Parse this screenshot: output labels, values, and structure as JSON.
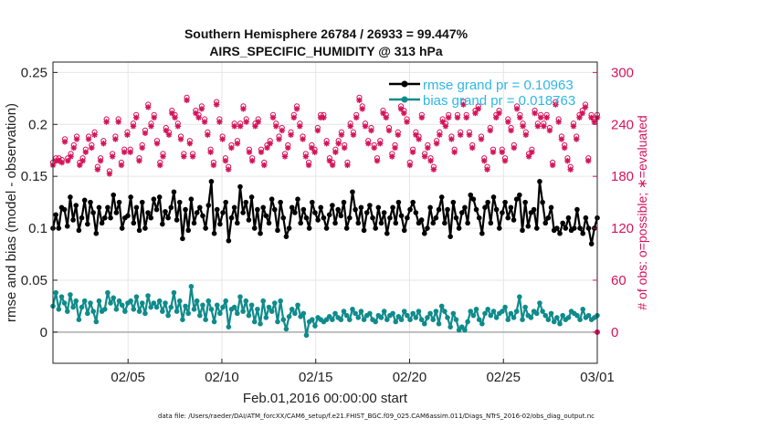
{
  "chart_data": {
    "type": "line",
    "title": "Southern Hemisphere 26784 / 26933 = 99.447%",
    "subtitle": "AIRS_SPECIFIC_HUMIDITY @ 313 hPa",
    "xlabel": "Feb.01,2016 00:00:00 start",
    "ylabel": "rmse and bias (model - observation)",
    "ylabel_right": "# of obs: o=possible; ∗=evaluated",
    "footnote": "data file: /Users/raeder/DAI/ATM_forcXX/CAM6_setup/f.e21.FHIST_BGC.f09_025.CAM6assim.011/Diags_NTrS_2016-02/obs_diag_output.nc",
    "x_tick_labels": [
      "02/05",
      "02/10",
      "02/15",
      "02/20",
      "02/25",
      "03/01"
    ],
    "x_tick_days": [
      5,
      10,
      15,
      20,
      25,
      30
    ],
    "xlim": [
      1,
      30
    ],
    "ylim": [
      -0.03,
      0.26
    ],
    "y_ticks": [
      0,
      0.05,
      0.1,
      0.15,
      0.2,
      0.25
    ],
    "y_tick_labels": [
      "0",
      "0.05",
      "0.1",
      "0.15",
      "0.2",
      "0.25"
    ],
    "ylim_right": [
      -36,
      312
    ],
    "y_ticks_right": [
      0,
      60,
      120,
      180,
      240,
      300
    ],
    "y_tick_labels_right": [
      "0",
      "60",
      "120",
      "180",
      "240",
      "300"
    ],
    "legend_position": "top-right",
    "colors": {
      "rmse": "#000000",
      "bias": "#108b8b",
      "obs": "#d4145a",
      "legend_text": "#2fb6e8",
      "zero_line": "#aaaaaa"
    },
    "series": [
      {
        "name": "rmse grand pr = 0.10963",
        "axis": "left",
        "values": [
          0.1,
          0.113,
          0.1,
          0.12,
          0.118,
          0.102,
          0.13,
          0.108,
          0.122,
          0.098,
          0.11,
          0.127,
          0.104,
          0.125,
          0.115,
          0.095,
          0.12,
          0.105,
          0.11,
          0.12,
          0.11,
          0.132,
          0.115,
          0.125,
          0.1,
          0.11,
          0.112,
          0.13,
          0.105,
          0.12,
          0.098,
          0.125,
          0.1,
          0.115,
          0.11,
          0.128,
          0.118,
          0.13,
          0.104,
          0.116,
          0.11,
          0.12,
          0.135,
          0.108,
          0.125,
          0.09,
          0.118,
          0.098,
          0.128,
          0.105,
          0.115,
          0.12,
          0.112,
          0.1,
          0.122,
          0.145,
          0.095,
          0.118,
          0.104,
          0.115,
          0.125,
          0.088,
          0.11,
          0.12,
          0.105,
          0.14,
          0.115,
          0.125,
          0.108,
          0.13,
          0.1,
          0.118,
          0.095,
          0.12,
          0.112,
          0.105,
          0.128,
          0.118,
          0.098,
          0.125,
          0.11,
          0.092,
          0.1,
          0.12,
          0.115,
          0.128,
          0.105,
          0.118,
          0.11,
          0.1,
          0.125,
          0.115,
          0.108,
          0.12,
          0.11,
          0.1,
          0.113,
          0.122,
          0.105,
          0.118,
          0.112,
          0.125,
          0.1,
          0.11,
          0.135,
          0.118,
          0.105,
          0.12,
          0.098,
          0.115,
          0.122,
          0.11,
          0.1,
          0.12,
          0.105,
          0.115,
          0.095,
          0.11,
          0.12,
          0.105,
          0.125,
          0.112,
          0.098,
          0.11,
          0.118,
          0.125,
          0.115,
          0.105,
          0.108,
          0.095,
          0.1,
          0.12,
          0.105,
          0.11,
          0.118,
          0.13,
          0.105,
          0.118,
          0.092,
          0.125,
          0.11,
          0.1,
          0.115,
          0.12,
          0.105,
          0.132,
          0.128,
          0.118,
          0.11,
          0.095,
          0.12,
          0.125,
          0.105,
          0.13,
          0.118,
          0.1,
          0.115,
          0.125,
          0.11,
          0.12,
          0.108,
          0.128,
          0.132,
          0.098,
          0.125,
          0.102,
          0.115,
          0.118,
          0.1,
          0.145,
          0.125,
          0.105,
          0.11,
          0.12,
          0.098,
          0.1,
          0.095,
          0.105,
          0.1,
          0.11,
          0.098,
          0.1,
          0.118,
          0.1,
          0.095,
          0.11,
          0.1,
          0.085,
          0.1,
          0.11
        ]
      },
      {
        "name": "bias grand pr = 0.018763",
        "axis": "left",
        "values": [
          0.025,
          0.038,
          0.022,
          0.034,
          0.028,
          0.02,
          0.036,
          0.024,
          0.03,
          0.012,
          0.024,
          0.03,
          0.018,
          0.028,
          0.02,
          0.01,
          0.03,
          0.02,
          0.022,
          0.038,
          0.028,
          0.033,
          0.022,
          0.03,
          0.026,
          0.02,
          0.028,
          0.03,
          0.022,
          0.034,
          0.02,
          0.028,
          0.018,
          0.035,
          0.024,
          0.028,
          0.024,
          0.03,
          0.02,
          0.028,
          0.016,
          0.024,
          0.038,
          0.02,
          0.03,
          0.012,
          0.025,
          0.018,
          0.044,
          0.022,
          0.03,
          0.016,
          0.026,
          0.012,
          0.03,
          0.022,
          0.01,
          0.026,
          0.018,
          0.024,
          0.03,
          0.005,
          0.022,
          0.024,
          0.018,
          0.034,
          0.02,
          0.03,
          0.016,
          0.026,
          0.01,
          0.022,
          0.008,
          0.03,
          0.014,
          0.024,
          0.02,
          0.028,
          0.01,
          0.03,
          0.012,
          0.003,
          0.015,
          0.022,
          0.018,
          0.026,
          0.015,
          0.018,
          -0.003,
          0.01,
          0.012,
          0.006,
          0.014,
          0.012,
          0.01,
          0.012,
          0.015,
          0.012,
          0.018,
          0.014,
          0.012,
          0.02,
          0.016,
          0.012,
          0.022,
          0.018,
          0.014,
          0.02,
          0.012,
          0.016,
          0.018,
          0.012,
          0.01,
          0.016,
          0.014,
          0.02,
          0.012,
          0.016,
          0.018,
          0.01,
          0.015,
          0.012,
          0.02,
          0.016,
          0.012,
          0.018,
          0.014,
          0.02,
          0.012,
          0.008,
          0.014,
          0.018,
          0.012,
          0.02,
          0.008,
          0.025,
          0.02,
          0.014,
          0.005,
          0.018,
          0.012,
          0.002,
          0.005,
          0.002,
          0.01,
          0.02,
          0.016,
          0.022,
          0.012,
          0.008,
          0.018,
          0.022,
          0.016,
          0.02,
          0.014,
          0.018,
          0.02,
          0.024,
          0.012,
          0.018,
          0.014,
          0.02,
          0.034,
          0.012,
          0.024,
          0.016,
          0.014,
          0.02,
          0.018,
          0.028,
          0.02,
          0.016,
          0.012,
          0.018,
          0.01,
          0.014,
          0.008,
          0.016,
          0.012,
          0.014,
          0.02,
          0.018,
          0.016,
          0.012,
          0.022,
          0.014,
          0.016,
          0.012,
          0.014,
          0.016
        ]
      },
      {
        "name": "possible",
        "axis": "right",
        "marker": "o",
        "values": [
          195,
          200,
          200,
          198,
          222,
          200,
          205,
          215,
          225,
          195,
          200,
          210,
          225,
          215,
          230,
          190,
          200,
          220,
          245,
          185,
          205,
          225,
          245,
          195,
          210,
          230,
          210,
          240,
          250,
          200,
          215,
          232,
          262,
          240,
          250,
          220,
          195,
          205,
          235,
          230,
          255,
          250,
          240,
          225,
          205,
          270,
          220,
          205,
          255,
          250,
          260,
          245,
          230,
          210,
          195,
          265,
          245,
          225,
          200,
          190,
          215,
          240,
          220,
          240,
          260,
          245,
          210,
          200,
          240,
          245,
          210,
          195,
          215,
          220,
          250,
          240,
          225,
          235,
          205,
          215,
          230,
          250,
          260,
          240,
          225,
          205,
          195,
          215,
          210,
          235,
          250,
          250,
          220,
          200,
          195,
          210,
          220,
          230,
          215,
          195,
          240,
          230,
          250,
          270,
          260,
          240,
          220,
          235,
          215,
          200,
          220,
          255,
          250,
          235,
          205,
          215,
          230,
          260,
          255,
          245,
          195,
          210,
          230,
          225,
          250,
          205,
          215,
          200,
          190,
          220,
          230,
          245,
          240,
          250,
          225,
          210,
          250,
          230,
          265,
          250,
          230,
          215,
          255,
          260,
          225,
          200,
          190,
          235,
          210,
          250,
          255,
          210,
          200,
          245,
          235,
          215,
          260,
          250,
          240,
          230,
          205,
          210,
          255,
          240,
          250,
          240,
          250,
          235,
          195,
          265,
          245,
          225,
          215,
          200,
          190,
          240,
          225,
          250,
          255,
          262,
          200,
          250,
          245,
          250
        ]
      }
    ]
  }
}
